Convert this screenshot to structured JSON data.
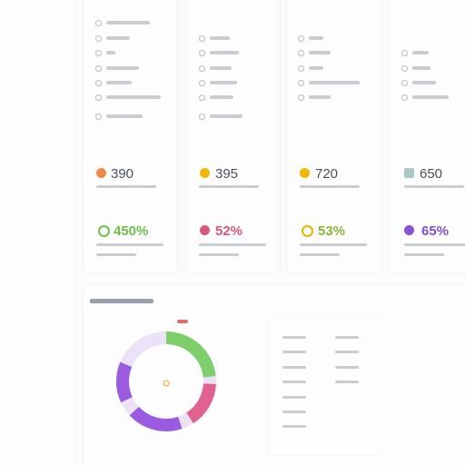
{
  "cards": [
    {
      "stat": "390",
      "percent": "450%"
    },
    {
      "stat": "395",
      "percent": "52%"
    },
    {
      "stat": "720",
      "percent": "53%"
    },
    {
      "stat": "650",
      "percent": "65%"
    }
  ]
}
